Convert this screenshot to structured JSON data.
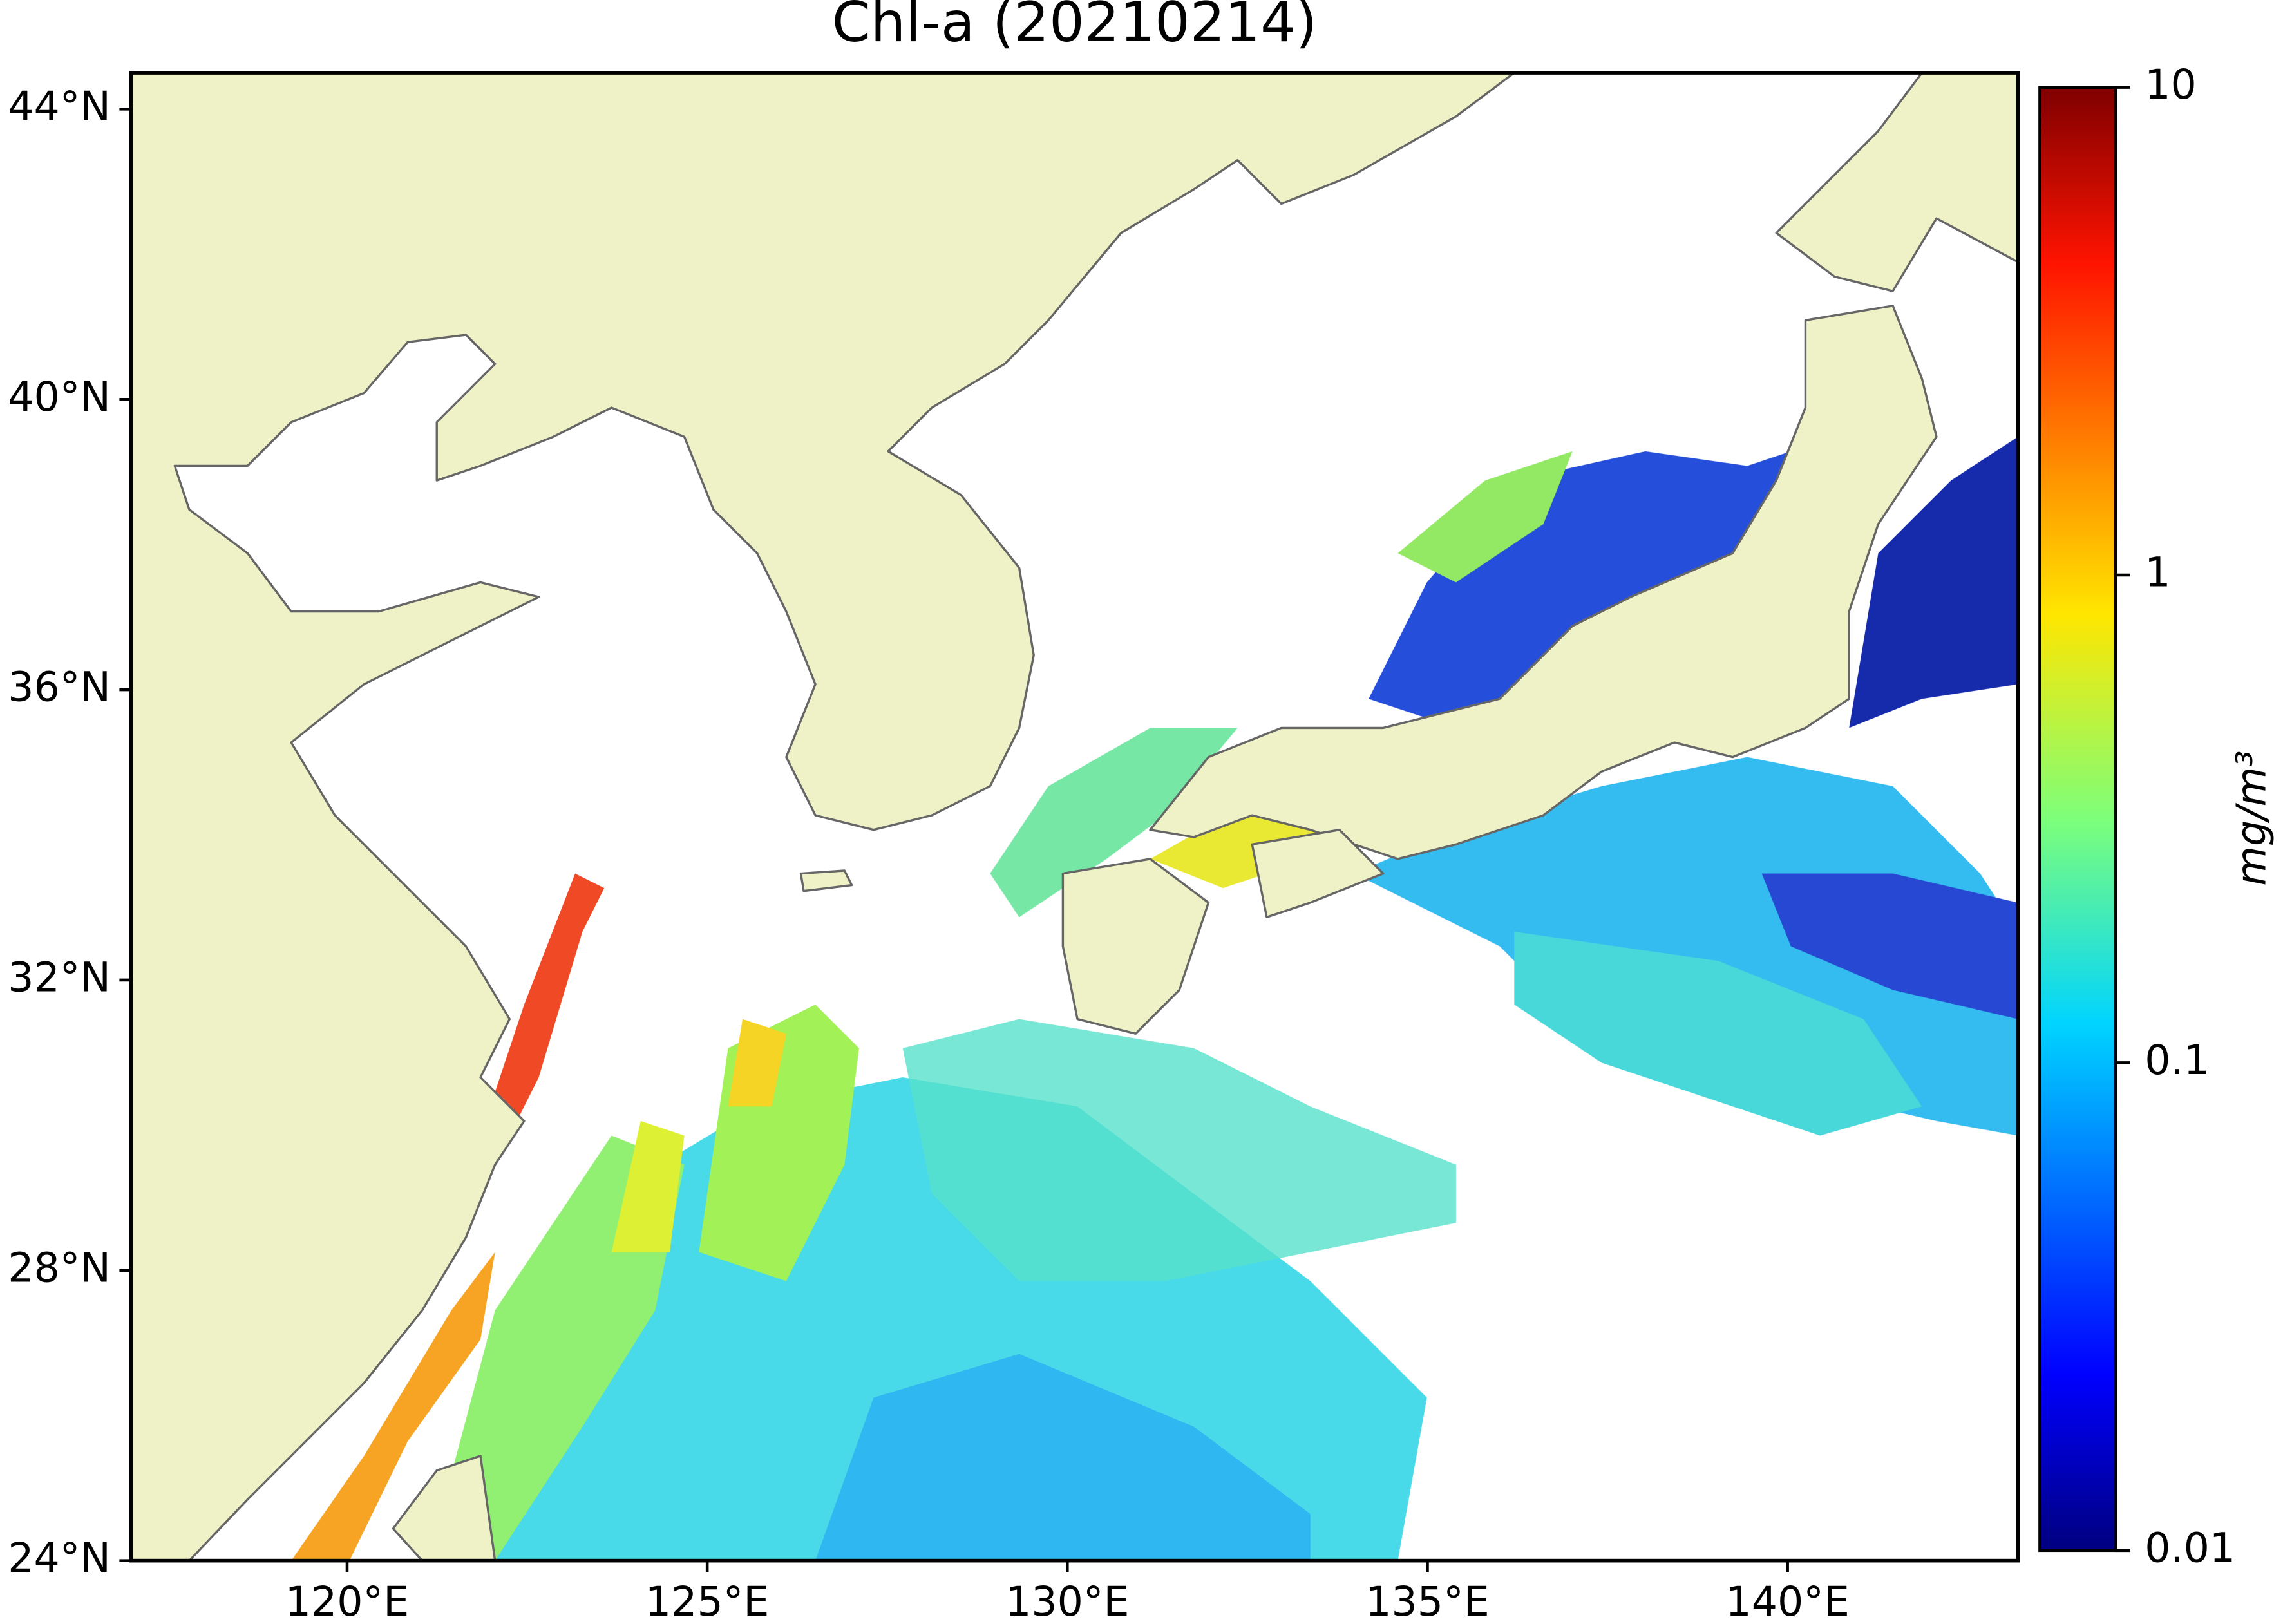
{
  "map": {
    "title": "Chl-a (20210214)",
    "xlim": [
      117,
      143.2
    ],
    "ylim": [
      24,
      44.5
    ],
    "xticks": [
      {
        "value": 120,
        "label": "120°E"
      },
      {
        "value": 125,
        "label": "125°E"
      },
      {
        "value": 130,
        "label": "130°E"
      },
      {
        "value": 135,
        "label": "135°E"
      },
      {
        "value": 140,
        "label": "140°E"
      }
    ],
    "yticks": [
      {
        "value": 24,
        "label": "24°N"
      },
      {
        "value": 28,
        "label": "28°N"
      },
      {
        "value": 32,
        "label": "32°N"
      },
      {
        "value": 36,
        "label": "36°N"
      },
      {
        "value": 40,
        "label": "40°N"
      },
      {
        "value": 44,
        "label": "44°N"
      }
    ],
    "colorbar": {
      "label": "mg/m³",
      "lim": [
        0.01,
        10
      ],
      "log": true,
      "ticks": [
        0.01,
        0.1,
        1,
        10
      ]
    }
  }
}
